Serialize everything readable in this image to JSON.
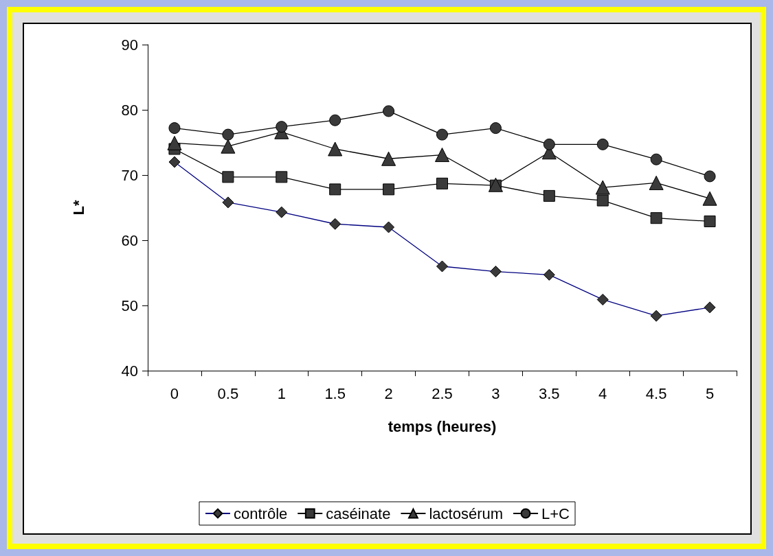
{
  "chart_data": {
    "type": "line",
    "xlabel": "temps (heures)",
    "ylabel": "L*",
    "categories": [
      "0",
      "0.5",
      "1",
      "1.5",
      "2",
      "2.5",
      "3",
      "3.5",
      "4",
      "4.5",
      "5"
    ],
    "series": [
      {
        "name": "contrôle",
        "color": "#000080",
        "marker": "diamond",
        "values": [
          72.0,
          65.8,
          64.3,
          62.5,
          62.0,
          56.0,
          55.2,
          54.7,
          50.9,
          48.4,
          49.7
        ]
      },
      {
        "name": "caséinate",
        "color": "#000000",
        "marker": "square",
        "values": [
          74.0,
          69.7,
          69.7,
          67.8,
          67.8,
          68.7,
          68.4,
          66.8,
          66.1,
          63.4,
          62.9
        ]
      },
      {
        "name": "lactosérum",
        "color": "#000000",
        "marker": "triangle",
        "values": [
          74.9,
          74.4,
          76.6,
          74.0,
          72.5,
          73.1,
          68.5,
          73.5,
          68.1,
          68.8,
          66.4
        ]
      },
      {
        "name": "L+C",
        "color": "#000000",
        "marker": "circle",
        "values": [
          77.2,
          76.2,
          77.4,
          78.4,
          79.8,
          76.2,
          77.2,
          74.7,
          74.7,
          72.4,
          69.8
        ]
      }
    ],
    "ylim": [
      40,
      90
    ],
    "yticks": [
      40,
      50,
      60,
      70,
      80,
      90
    ],
    "grid": false,
    "legend": "bottom"
  }
}
